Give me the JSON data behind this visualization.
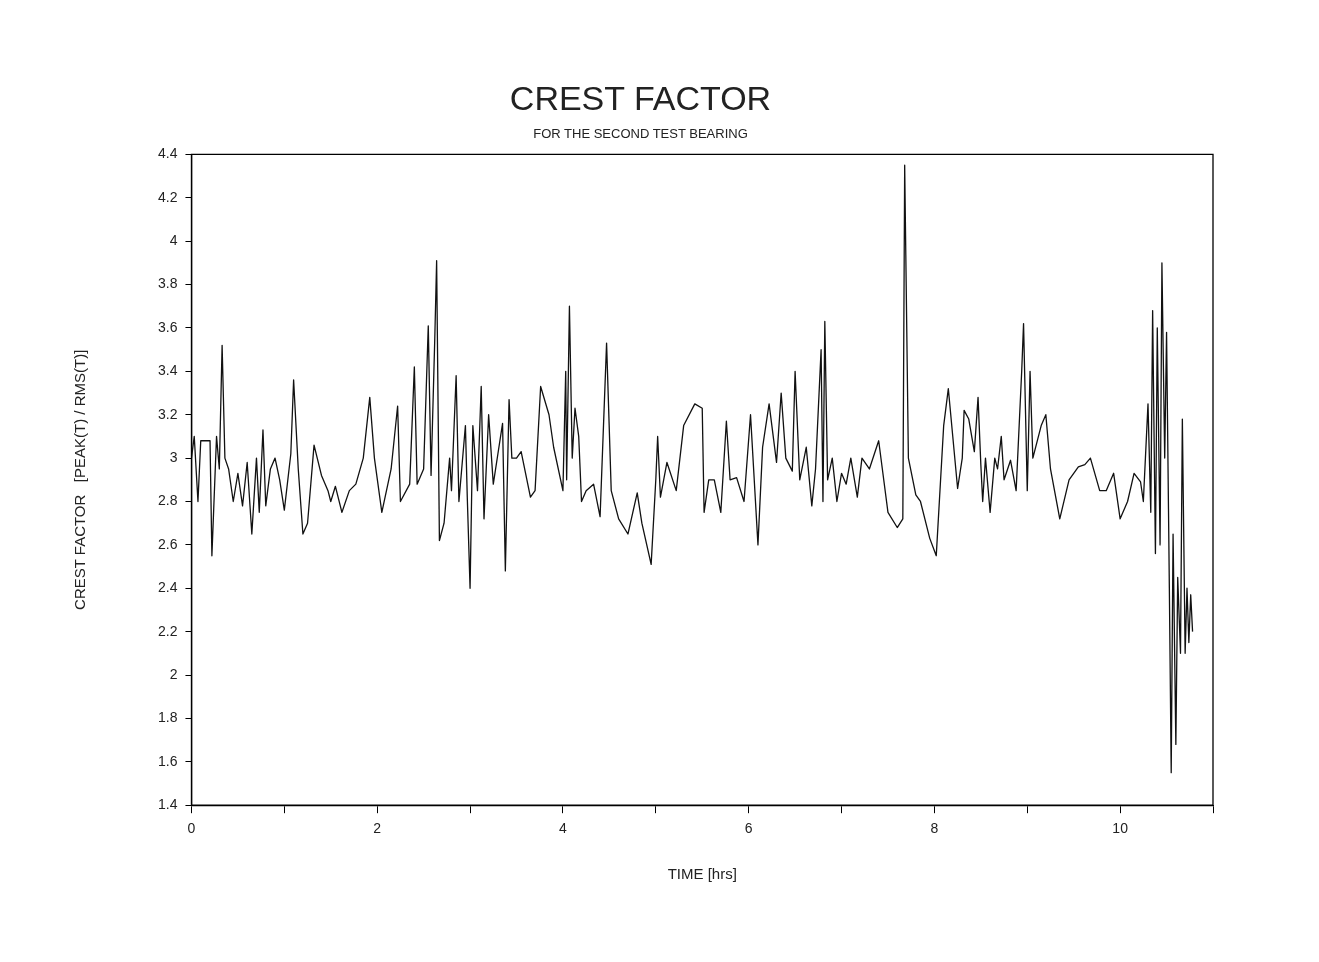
{
  "chart_data": {
    "type": "line",
    "title": "CREST FACTOR",
    "subtitle": "FOR THE SECOND TEST BEARING",
    "xlabel": "TIME [hrs]",
    "ylabel": "CREST FACTOR   [PEAK(T) / RMS(T)]",
    "xlim": [
      0,
      11
    ],
    "xticks": [
      0,
      {
        "value": 1,
        "label": null
      },
      2,
      {
        "value": 3,
        "label": null
      },
      4,
      {
        "value": 5,
        "label": null
      },
      6,
      {
        "value": 7,
        "label": null
      },
      8,
      {
        "value": 9,
        "label": null
      },
      10,
      {
        "value": 11,
        "label": null
      }
    ],
    "ylim": [
      1.4,
      4.4
    ],
    "yticks": [
      1.4,
      1.6,
      1.8,
      2,
      2.2,
      2.4,
      2.6,
      2.8,
      3,
      3.2,
      3.4,
      3.6,
      3.8,
      4,
      4.2,
      4.4
    ],
    "grid": false,
    "legend": false,
    "marker": "none",
    "line_style": "solid",
    "series": [
      {
        "color": "#111111",
        "x": [
          0,
          0.03,
          0.07,
          0.1,
          0.2,
          0.22,
          0.27,
          0.3,
          0.33,
          0.36,
          0.4,
          0.45,
          0.5,
          0.55,
          0.6,
          0.65,
          0.7,
          0.73,
          0.77,
          0.8,
          0.85,
          0.9,
          0.95,
          1.0,
          1.07,
          1.1,
          1.15,
          1.2,
          1.25,
          1.32,
          1.4,
          1.47,
          1.5,
          1.55,
          1.62,
          1.7,
          1.77,
          1.85,
          1.92,
          1.97,
          2.05,
          2.15,
          2.22,
          2.25,
          2.35,
          2.4,
          2.43,
          2.5,
          2.55,
          2.58,
          2.62,
          2.64,
          2.67,
          2.72,
          2.78,
          2.8,
          2.85,
          2.88,
          2.95,
          2.97,
          3.0,
          3.03,
          3.08,
          3.12,
          3.15,
          3.2,
          3.25,
          3.3,
          3.35,
          3.38,
          3.42,
          3.45,
          3.5,
          3.55,
          3.65,
          3.7,
          3.76,
          3.85,
          3.9,
          4.0,
          4.03,
          4.04,
          4.07,
          4.1,
          4.13,
          4.17,
          4.2,
          4.25,
          4.33,
          4.4,
          4.47,
          4.52,
          4.6,
          4.7,
          4.8,
          4.85,
          4.95,
          5.0,
          5.02,
          5.05,
          5.12,
          5.22,
          5.3,
          5.42,
          5.5,
          5.52,
          5.57,
          5.63,
          5.7,
          5.76,
          5.8,
          5.87,
          5.95,
          6.02,
          6.1,
          6.15,
          6.22,
          6.3,
          6.35,
          6.4,
          6.47,
          6.5,
          6.55,
          6.62,
          6.68,
          6.72,
          6.78,
          6.8,
          6.82,
          6.85,
          6.9,
          6.95,
          7.0,
          7.05,
          7.1,
          7.17,
          7.22,
          7.3,
          7.4,
          7.5,
          7.6,
          7.66,
          7.68,
          7.72,
          7.8,
          7.85,
          7.95,
          8.02,
          8.1,
          8.15,
          8.25,
          8.3,
          8.32,
          8.37,
          8.43,
          8.47,
          8.5,
          8.52,
          8.55,
          8.6,
          8.65,
          8.68,
          8.72,
          8.75,
          8.82,
          8.88,
          8.94,
          8.96,
          9.0,
          9.03,
          9.06,
          9.15,
          9.2,
          9.25,
          9.35,
          9.45,
          9.55,
          9.62,
          9.68,
          9.78,
          9.85,
          9.93,
          10.0,
          10.08,
          10.15,
          10.22,
          10.25,
          10.3,
          10.33,
          10.35,
          10.38,
          10.4,
          10.43,
          10.45,
          10.48,
          10.5,
          10.53,
          10.55,
          10.57,
          10.6,
          10.62,
          10.65,
          10.67,
          10.7,
          10.72,
          10.74,
          10.76,
          10.78
        ],
        "values": [
          3.0,
          3.1,
          2.8,
          3.08,
          3.08,
          2.55,
          3.1,
          2.95,
          3.52,
          3.0,
          2.95,
          2.8,
          2.93,
          2.78,
          2.98,
          2.65,
          3.0,
          2.75,
          3.13,
          2.78,
          2.95,
          3.0,
          2.9,
          2.76,
          3.02,
          3.36,
          2.95,
          2.65,
          2.7,
          3.06,
          2.92,
          2.85,
          2.8,
          2.87,
          2.75,
          2.85,
          2.88,
          3.0,
          3.28,
          3.0,
          2.75,
          2.95,
          3.24,
          2.8,
          2.88,
          3.42,
          2.88,
          2.95,
          3.61,
          2.92,
          3.55,
          3.91,
          2.62,
          2.7,
          3.0,
          2.85,
          3.38,
          2.8,
          3.15,
          2.82,
          2.4,
          3.15,
          2.85,
          3.33,
          2.72,
          3.2,
          2.88,
          3.02,
          3.16,
          2.48,
          3.27,
          3.0,
          3.0,
          3.03,
          2.82,
          2.85,
          3.33,
          3.2,
          3.05,
          2.85,
          3.4,
          2.9,
          3.7,
          3.0,
          3.23,
          3.1,
          2.8,
          2.85,
          2.88,
          2.73,
          3.53,
          2.85,
          2.72,
          2.65,
          2.84,
          2.7,
          2.51,
          2.9,
          3.1,
          2.82,
          2.98,
          2.85,
          3.15,
          3.25,
          3.23,
          2.75,
          2.9,
          2.9,
          2.75,
          3.17,
          2.9,
          2.91,
          2.8,
          3.2,
          2.6,
          3.05,
          3.25,
          2.98,
          3.3,
          3.0,
          2.94,
          3.4,
          2.9,
          3.05,
          2.78,
          2.95,
          3.5,
          2.8,
          3.63,
          2.9,
          3.0,
          2.8,
          2.93,
          2.88,
          3.0,
          2.82,
          3.0,
          2.95,
          3.08,
          2.75,
          2.68,
          2.72,
          4.35,
          3.0,
          2.83,
          2.8,
          2.63,
          2.55,
          3.15,
          3.32,
          2.86,
          3.0,
          3.22,
          3.18,
          3.03,
          3.28,
          2.97,
          2.8,
          3.0,
          2.75,
          3.0,
          2.95,
          3.1,
          2.9,
          2.99,
          2.85,
          3.4,
          3.62,
          2.85,
          3.4,
          3.0,
          3.15,
          3.2,
          2.95,
          2.72,
          2.9,
          2.96,
          2.97,
          3.0,
          2.85,
          2.85,
          2.93,
          2.72,
          2.8,
          2.93,
          2.89,
          2.8,
          3.25,
          2.75,
          3.68,
          2.56,
          3.6,
          2.6,
          3.9,
          3.0,
          3.58,
          2.4,
          1.55,
          2.65,
          1.68,
          2.45,
          2.1,
          3.18,
          2.1,
          2.4,
          2.15,
          2.37,
          2.2
        ]
      }
    ]
  }
}
